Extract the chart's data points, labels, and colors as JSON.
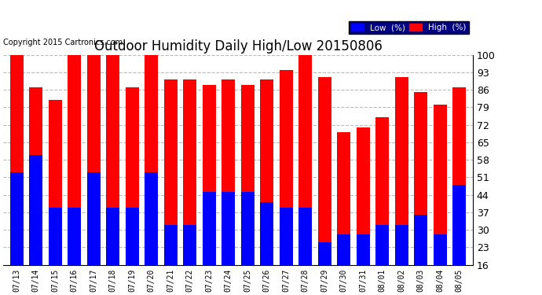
{
  "title": "Outdoor Humidity Daily High/Low 20150806",
  "copyright": "Copyright 2015 Cartronics.com",
  "dates": [
    "07/13",
    "07/14",
    "07/15",
    "07/16",
    "07/17",
    "07/18",
    "07/19",
    "07/20",
    "07/21",
    "07/22",
    "07/23",
    "07/24",
    "07/25",
    "07/26",
    "07/27",
    "07/28",
    "07/29",
    "07/30",
    "07/31",
    "08/01",
    "08/02",
    "08/03",
    "08/04",
    "08/05"
  ],
  "high": [
    100,
    87,
    82,
    100,
    100,
    100,
    87,
    100,
    90,
    90,
    88,
    90,
    88,
    90,
    94,
    100,
    91,
    69,
    71,
    75,
    91,
    85,
    80,
    87
  ],
  "low": [
    53,
    60,
    39,
    39,
    53,
    39,
    39,
    53,
    32,
    32,
    45,
    45,
    45,
    41,
    39,
    39,
    25,
    28,
    28,
    32,
    32,
    36,
    28,
    48
  ],
  "ylim": [
    16,
    100
  ],
  "yticks": [
    16,
    23,
    30,
    37,
    44,
    51,
    58,
    65,
    72,
    79,
    86,
    93,
    100
  ],
  "bar_color_high": "#ff0000",
  "bar_color_low": "#0000ff",
  "bg_color": "#ffffff",
  "grid_color": "#bbbbbb",
  "title_fontsize": 12,
  "copyright_fontsize": 7,
  "legend_low_label": "Low  (%)",
  "legend_high_label": "High  (%)",
  "bar_width": 0.7
}
